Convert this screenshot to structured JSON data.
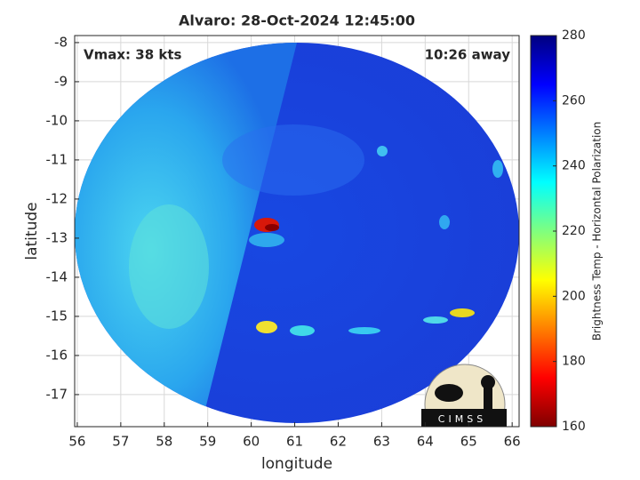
{
  "chart_data": {
    "type": "image",
    "title": "Alvaro: 28-Oct-2024 12:45:00",
    "xlabel": "longitude",
    "ylabel": "latitude",
    "xlim": [
      55.94,
      66.16
    ],
    "ylim": [
      -17.82,
      -7.82
    ],
    "xticks": [
      56,
      57,
      58,
      59,
      60,
      61,
      62,
      63,
      64,
      65,
      66
    ],
    "yticks": [
      -17,
      -16,
      -15,
      -14,
      -13,
      -12,
      -11,
      -10,
      -9,
      -8
    ],
    "grid": true,
    "annotations": [
      "Vmax: 38 kts",
      "10:26 away"
    ],
    "colorbar": {
      "label": "Brightness Temp - Horizontal Polarization",
      "clim": [
        160,
        280
      ],
      "ticks": [
        160,
        180,
        200,
        220,
        240,
        260,
        280
      ],
      "colormap": "jet"
    },
    "logo": "CIMSS"
  }
}
